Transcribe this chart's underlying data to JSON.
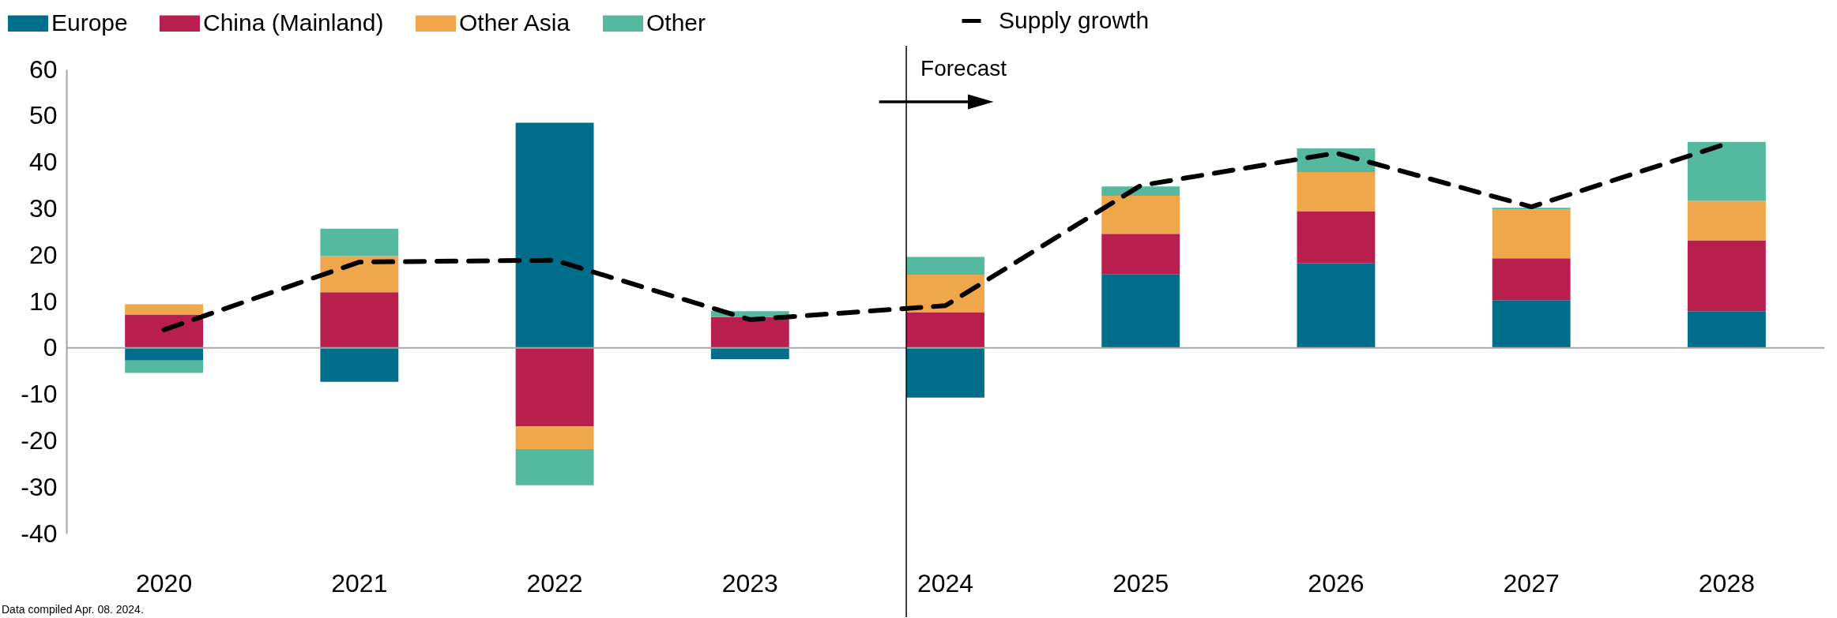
{
  "chart_data": {
    "type": "bar",
    "stacked": true,
    "categories": [
      "2020",
      "2021",
      "2022",
      "2023",
      "2024",
      "2025",
      "2026",
      "2027",
      "2028"
    ],
    "series": [
      {
        "name": "Europe",
        "color": "#006e8a",
        "values": [
          -2.7,
          -7.3,
          48.5,
          -2.4,
          -10.7,
          15.9,
          18.3,
          10.3,
          7.9
        ]
      },
      {
        "name": "China (Mainland)",
        "color": "#b81f4f",
        "values": [
          7.2,
          12.0,
          -16.9,
          6.7,
          7.7,
          8.7,
          11.1,
          9.0,
          15.3
        ]
      },
      {
        "name": "Other Asia",
        "color": "#f0a64b",
        "values": [
          2.2,
          7.8,
          -4.9,
          null,
          8.1,
          8.2,
          8.5,
          10.5,
          8.5
        ]
      },
      {
        "name": "Other",
        "color": "#55b99f",
        "values": [
          -2.7,
          5.9,
          -7.8,
          1.2,
          3.8,
          2.0,
          5.1,
          0.4,
          12.7
        ]
      },
      {
        "name": "Supply growth",
        "color": "#000000",
        "type": "line",
        "line_style": "dashed",
        "values": [
          3.9,
          18.5,
          18.9,
          6.1,
          9.1,
          35.0,
          42.0,
          30.4,
          44.0
        ]
      }
    ],
    "ylim": [
      -40,
      60
    ],
    "yticks": [
      -40,
      -30,
      -20,
      -10,
      0,
      10,
      20,
      30,
      40,
      50,
      60
    ],
    "ref_lines": [
      {
        "axis": "y",
        "value": 0,
        "color": "#a6a6a6"
      },
      {
        "axis": "x",
        "value": "2024",
        "label": "Forecast",
        "color": "#000000"
      }
    ],
    "legend": "top left",
    "annotations": [
      "Data compiled Apr. 08. 2024."
    ]
  }
}
